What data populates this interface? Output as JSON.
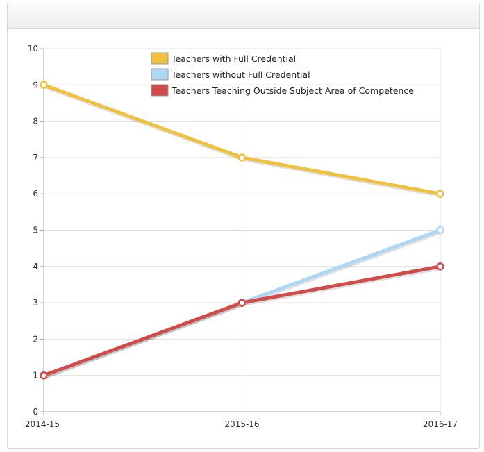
{
  "chart_data": {
    "type": "line",
    "title": "",
    "xlabel": "",
    "ylabel": "",
    "categories": [
      "2014-15",
      "2015-16",
      "2016-17"
    ],
    "ylim": [
      0,
      10
    ],
    "yticks": [
      "0",
      "1",
      "2",
      "3",
      "4",
      "5",
      "6",
      "7",
      "8",
      "9",
      "10"
    ],
    "grid": true,
    "legend_position": "top-center",
    "series": [
      {
        "name": "Teachers with Full Credential",
        "color": "#f0c040",
        "values": [
          9,
          7,
          6
        ]
      },
      {
        "name": "Teachers without Full Credential",
        "color": "#aed6f5",
        "values": [
          1,
          3,
          5
        ]
      },
      {
        "name": "Teachers Teaching Outside Subject Area of Competence",
        "color": "#d24b4b",
        "values": [
          1,
          3,
          4
        ]
      }
    ]
  }
}
